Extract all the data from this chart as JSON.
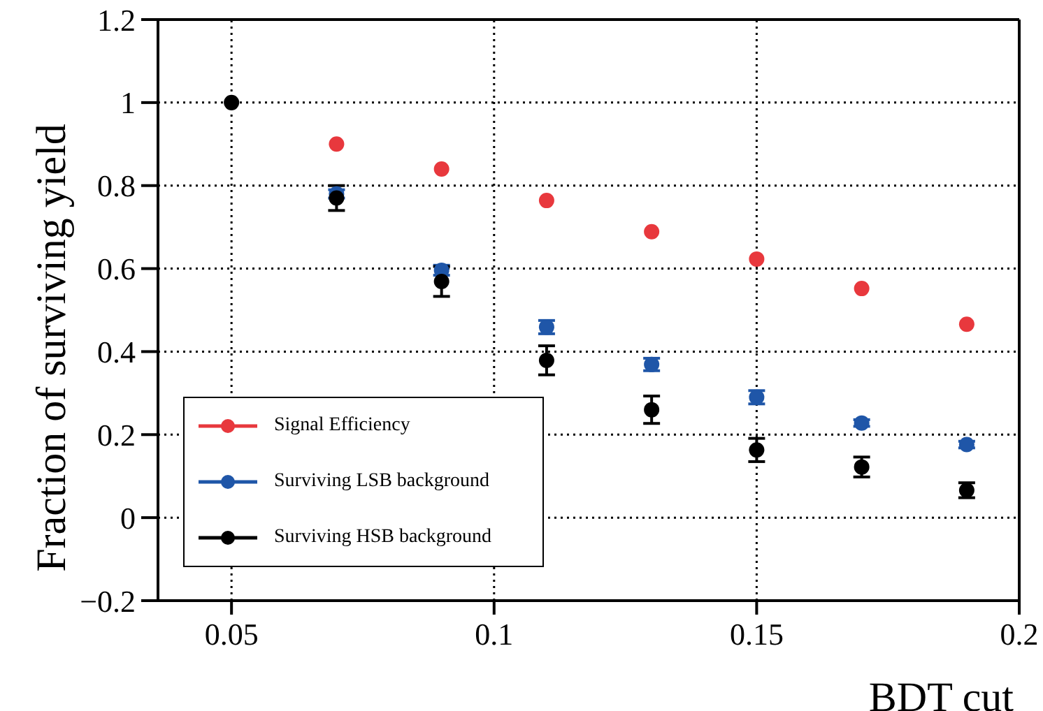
{
  "chart_data": {
    "type": "scatter",
    "xlabel": "BDT cut",
    "ylabel": "Fraction of surviving yield",
    "xlim": [
      0.036,
      0.2
    ],
    "ylim": [
      -0.2,
      1.2
    ],
    "xticks": [
      0.05,
      0.1,
      0.15,
      0.2
    ],
    "yticks": [
      {
        "value": -0.2,
        "label": "−0.2"
      },
      0,
      0.2,
      0.4,
      0.6,
      0.8,
      1,
      1.2
    ],
    "grid": true,
    "legend": "bottom left",
    "marker": "circle",
    "series": [
      {
        "name": "Signal Efficiency",
        "color": "#e8383d",
        "x": [
          0.07,
          0.09,
          0.11,
          0.13,
          0.15,
          0.17,
          0.19
        ],
        "values": [
          0.9,
          0.84,
          0.764,
          0.689,
          0.623,
          0.552,
          0.466
        ]
      },
      {
        "name": "Surviving LSB background",
        "color": "#1f56a8",
        "x": [
          0.07,
          0.09,
          0.11,
          0.13,
          0.15,
          0.17,
          0.19
        ],
        "values": [
          0.78,
          0.596,
          0.459,
          0.369,
          0.29,
          0.228,
          0.176
        ],
        "errors": [
          0.01,
          0.012,
          0.016,
          0.015,
          0.016,
          0.008,
          0.008
        ]
      },
      {
        "name": "Surviving HSB background",
        "color": "#000000",
        "x": [
          0.05,
          0.07,
          0.09,
          0.11,
          0.13,
          0.15,
          0.17,
          0.19
        ],
        "values": [
          1.0,
          0.77,
          0.569,
          0.379,
          0.26,
          0.163,
          0.122,
          0.066
        ],
        "errors": [
          null,
          0.03,
          0.036,
          0.035,
          0.033,
          0.028,
          0.024,
          0.018
        ]
      }
    ]
  }
}
